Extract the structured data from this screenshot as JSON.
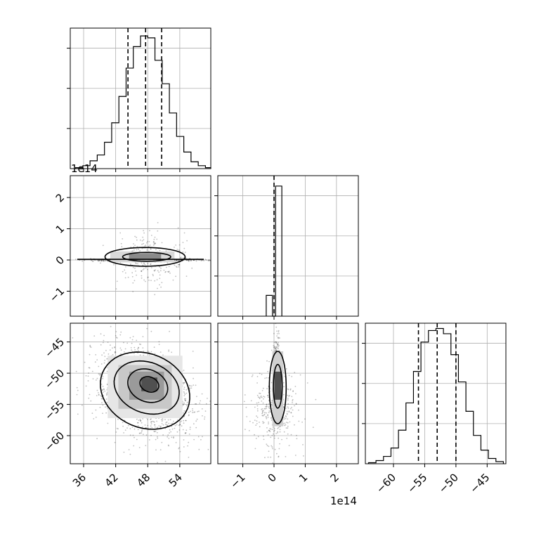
{
  "chart_data": {
    "type": "corner",
    "params": [
      "p0",
      "p1",
      "p2"
    ],
    "title": "",
    "quantile_lines": {
      "p0": [
        44.3,
        47.6,
        50.6
      ],
      "p1": [
        0.0
      ],
      "p2": [
        -56.0,
        -53.0,
        -50.0
      ]
    },
    "offset_labels": {
      "p1_y": "1e14",
      "p1_x": "1e14"
    },
    "axes": {
      "p0": {
        "range": [
          33.5,
          59.8
        ],
        "ticks": [
          36,
          42,
          48,
          54
        ],
        "tick_labels": [
          "36",
          "42",
          "48",
          "54"
        ]
      },
      "p1": {
        "range": [
          -1.8,
          2.7
        ],
        "ticks": [
          -1,
          0,
          1,
          2
        ],
        "tick_labels": [
          "−1",
          "0",
          "1",
          "2"
        ]
      },
      "p2": {
        "range": [
          -64.5,
          -42.0
        ],
        "ticks": [
          -60,
          -55,
          -50,
          -45
        ],
        "tick_labels": [
          "−60",
          "−55",
          "−50",
          "−45"
        ]
      }
    },
    "hist_p0": {
      "edges": [
        34.5,
        35.85,
        37.2,
        38.55,
        39.9,
        41.25,
        42.6,
        43.95,
        45.3,
        46.65,
        48.0,
        49.35,
        50.7,
        52.05,
        53.4,
        54.75,
        56.1,
        57.45,
        58.8,
        59.8
      ],
      "counts": [
        1,
        3,
        8,
        14,
        27,
        47,
        74,
        103,
        125,
        136,
        134,
        111,
        87,
        57,
        33,
        17,
        7,
        3,
        1
      ],
      "ymax": 144
    },
    "hist_p1": {
      "edges": [
        -0.25,
        -0.05,
        0.05,
        0.25
      ],
      "counts": [
        16,
        0,
        100
      ],
      "ymax": 108
    },
    "hist_p2": {
      "edges": [
        -64.0,
        -62.8,
        -61.6,
        -60.4,
        -59.2,
        -58.0,
        -56.8,
        -55.6,
        -54.4,
        -53.2,
        -52.0,
        -50.8,
        -49.6,
        -48.4,
        -47.2,
        -46.0,
        -44.8,
        -43.6,
        -42.4
      ],
      "counts": [
        1,
        3,
        7,
        15,
        32,
        58,
        88,
        116,
        127,
        129,
        124,
        104,
        78,
        50,
        27,
        13,
        5,
        2
      ],
      "ymax": 134
    }
  }
}
